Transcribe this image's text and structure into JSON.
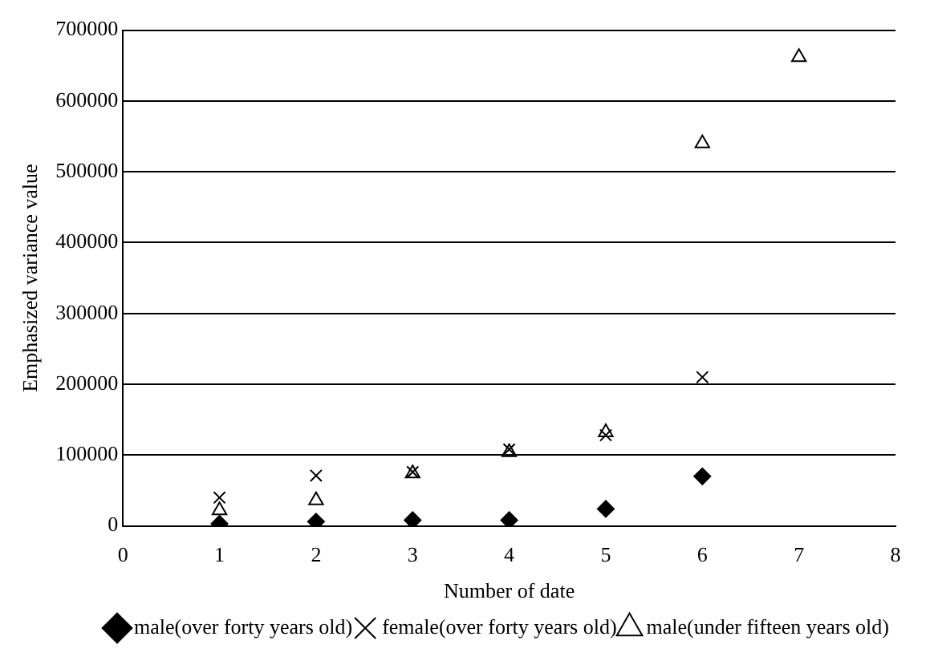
{
  "chart_data": {
    "type": "scatter",
    "xlabel": "Number of date",
    "ylabel": "Emphasized variance value",
    "x": [
      1,
      2,
      3,
      4,
      5,
      6,
      7
    ],
    "series": [
      {
        "name": "male(over forty years old)",
        "color": "#000000",
        "marker": "diamond",
        "values": [
          3000,
          6000,
          8000,
          8000,
          24000,
          70000,
          null
        ]
      },
      {
        "name": "female(over forty years old)",
        "color": "#000000",
        "marker": "cross",
        "values": [
          40000,
          71000,
          76000,
          108000,
          128000,
          210000,
          null
        ]
      },
      {
        "name": "male(under fifteen years old)",
        "color": "#000000",
        "marker": "triangle",
        "values": [
          22000,
          36000,
          74000,
          104000,
          132000,
          540000,
          662000
        ]
      }
    ],
    "xlim": [
      0,
      8
    ],
    "xticks": [
      0,
      1,
      2,
      3,
      4,
      5,
      6,
      7,
      8
    ],
    "ylim": [
      0,
      700000
    ],
    "yticks": [
      0,
      100000,
      200000,
      300000,
      400000,
      500000,
      600000,
      700000
    ],
    "grid": "y",
    "legend": "bottom right"
  }
}
